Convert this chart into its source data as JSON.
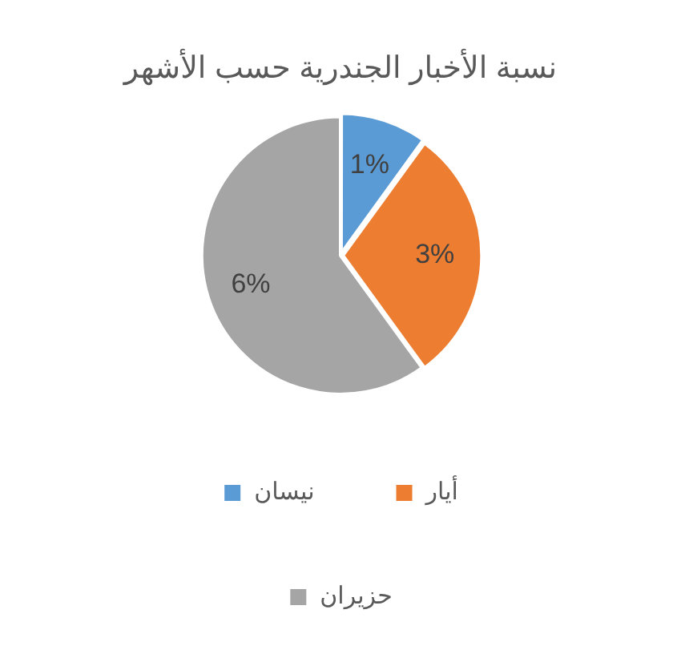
{
  "chart_data": {
    "type": "pie",
    "title": "نسبة الأخبار الجندرية حسب الأشهر",
    "categories": [
      "نيسان",
      "أيار",
      "حزيران"
    ],
    "values": [
      1,
      3,
      6
    ],
    "colors": [
      "#5b9bd5",
      "#ed7d31",
      "#a5a5a5"
    ],
    "value_labels": [
      "1%",
      "3%",
      "6%"
    ],
    "legend": "bottom"
  }
}
